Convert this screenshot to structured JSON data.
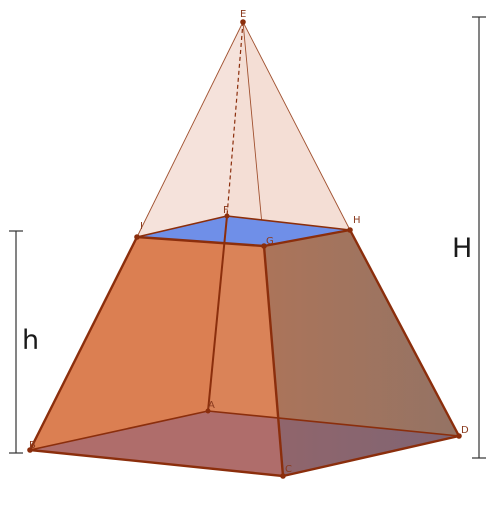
{
  "diagram": {
    "points": {
      "A": "A",
      "B": "B",
      "C": "C",
      "D": "D",
      "E": "E",
      "F": "F",
      "G": "G",
      "H": "H",
      "I": "I"
    },
    "dimensions": {
      "small_height": "h",
      "full_height": "H"
    },
    "colors": {
      "edge": "#8b2e0c",
      "frustum_face": "#d9774a",
      "frustum_right_face": "#9b6a57",
      "base_face": "#7b5a8a",
      "top_face": "#6f8fe6",
      "apex_face": "#f3ddd4",
      "dimension_line": "#333333"
    }
  }
}
